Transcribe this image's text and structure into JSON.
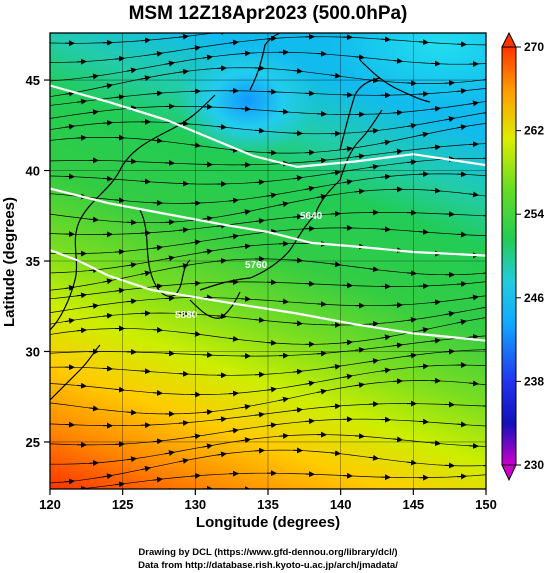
{
  "title": "MSM 12Z18Apr2023 (500.0hPa)",
  "x_label": "Longitude (degrees)",
  "y_label": "Latitude  (degrees)",
  "credits": [
    "Drawing by DCL (https://www.gfd-dennou.org/library/dcl/)",
    "Data from http://database.rish.kyoto-u.ac.jp/arch/jmadata/"
  ],
  "contour_labels": [
    "5640",
    "5760",
    "5880"
  ],
  "chart_data": {
    "type": "heatmap",
    "title": "MSM 12Z18Apr2023 (500.0hPa)",
    "xlabel": "Longitude (degrees)",
    "ylabel": "Latitude  (degrees)",
    "xlim": [
      120,
      150
    ],
    "ylim": [
      22.4,
      47.6
    ],
    "x_ticks": [
      "120",
      "125",
      "130",
      "135",
      "140",
      "145",
      "150"
    ],
    "y_ticks": [
      "25",
      "30",
      "35",
      "40",
      "45"
    ],
    "colorbar": {
      "min": 230,
      "max": 270,
      "ticks": [
        "270",
        "262",
        "254",
        "246",
        "238",
        "230"
      ],
      "colors": [
        "#ff3300",
        "#ff9900",
        "#ddee00",
        "#55dd22",
        "#22cc66",
        "#22ccee",
        "#11aaff",
        "#2244ff",
        "#1111bb",
        "#cc00cc"
      ]
    },
    "contours": [
      {
        "label": "5640",
        "points": [
          [
            120,
            44.7
          ],
          [
            124,
            43.8
          ],
          [
            128,
            42.8
          ],
          [
            131,
            41.8
          ],
          [
            134,
            40.8
          ],
          [
            137,
            40.2
          ],
          [
            141,
            40.5
          ],
          [
            145,
            40.9
          ],
          [
            150,
            40.3
          ]
        ]
      },
      {
        "label": "5760",
        "points": [
          [
            120,
            39.0
          ],
          [
            124,
            38.2
          ],
          [
            128,
            37.6
          ],
          [
            132,
            37.0
          ],
          [
            135,
            36.6
          ],
          [
            138,
            36.0
          ],
          [
            141,
            35.8
          ],
          [
            145,
            35.5
          ],
          [
            150,
            35.3
          ]
        ]
      },
      {
        "label": "5880",
        "points": [
          [
            120,
            35.6
          ],
          [
            122,
            35.0
          ],
          [
            124,
            34.2
          ],
          [
            127,
            33.4
          ],
          [
            130,
            33.0
          ],
          [
            133,
            32.6
          ],
          [
            137,
            32.1
          ],
          [
            141,
            31.5
          ],
          [
            145,
            31.0
          ],
          [
            150,
            30.6
          ]
        ]
      }
    ],
    "grid": true
  }
}
